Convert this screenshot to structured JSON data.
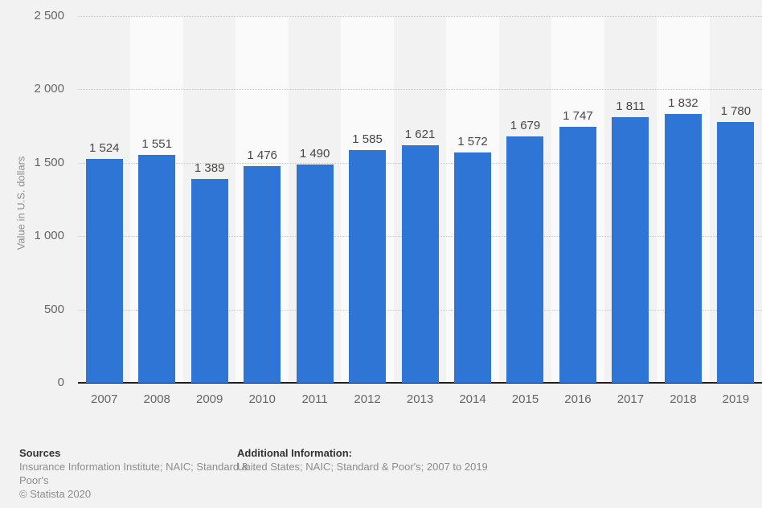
{
  "chart_data": {
    "type": "bar",
    "title": "",
    "xlabel": "",
    "ylabel": "Value in U.S. dollars",
    "ylim": [
      0,
      2500
    ],
    "grid": "horizontal-dotted",
    "legend": "none",
    "bar_color": "#2e75d6",
    "stripe_alt_color": "#fafafa",
    "categories": [
      "2007",
      "2008",
      "2009",
      "2010",
      "2011",
      "2012",
      "2013",
      "2014",
      "2015",
      "2016",
      "2017",
      "2018",
      "2019"
    ],
    "values": [
      1524,
      1551,
      1389,
      1476,
      1490,
      1585,
      1621,
      1572,
      1679,
      1747,
      1811,
      1832,
      1780
    ],
    "value_labels": [
      "1 524",
      "1 551",
      "1 389",
      "1 476",
      "1 490",
      "1 585",
      "1 621",
      "1 572",
      "1 679",
      "1 747",
      "1 811",
      "1 832",
      "1 780"
    ],
    "y_ticks": [
      {
        "value": 0,
        "label": "0"
      },
      {
        "value": 500,
        "label": "500"
      },
      {
        "value": 1000,
        "label": "1 000"
      },
      {
        "value": 1500,
        "label": "1 500"
      },
      {
        "value": 2000,
        "label": "2 000"
      },
      {
        "value": 2500,
        "label": "2 500"
      }
    ]
  },
  "footer": {
    "sources_heading": "Sources",
    "sources_text": "Insurance Information Institute; NAIC; Standard & Poor's",
    "copyright": "© Statista 2020",
    "additional_heading": "Additional Information:",
    "additional_text": "United States; NAIC; Standard & Poor's; 2007 to 2019"
  }
}
